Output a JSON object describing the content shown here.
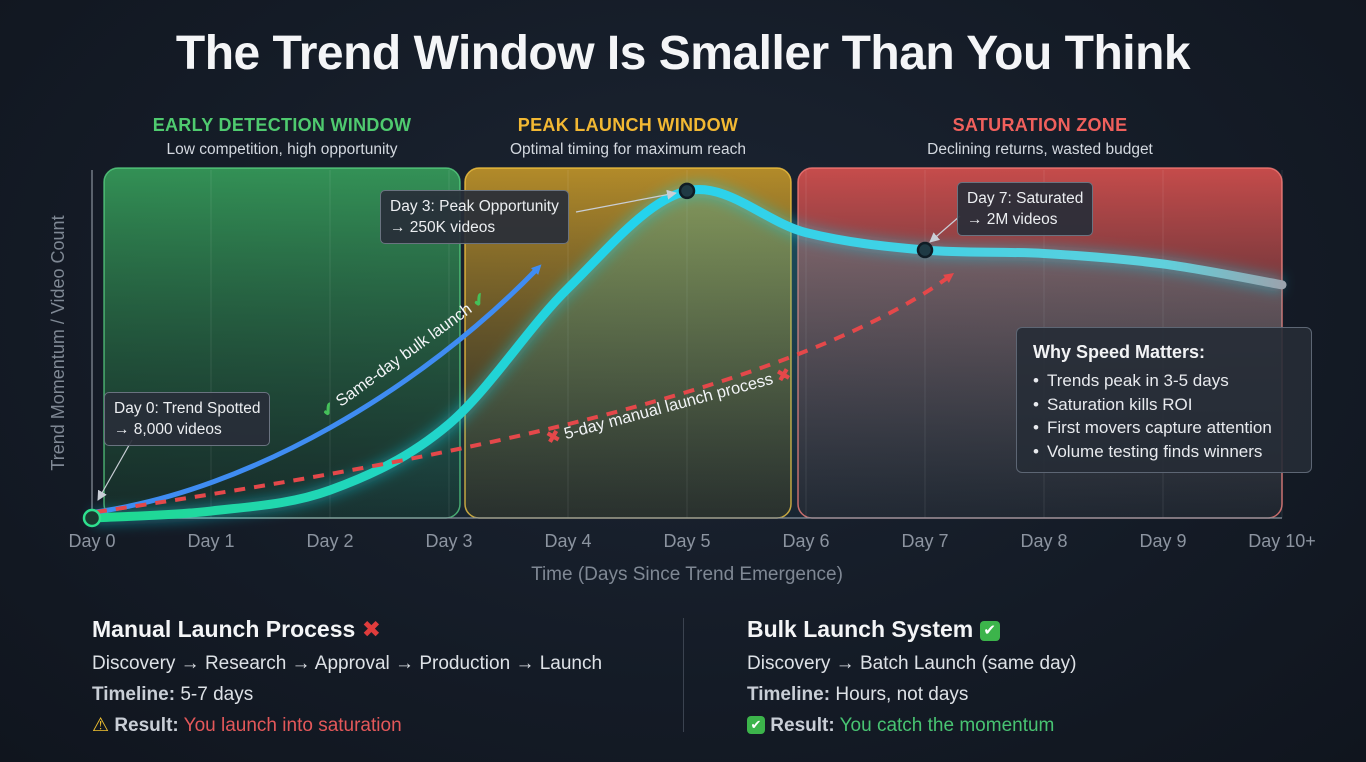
{
  "title": "The Trend Window Is Smaller Than You Think",
  "zones": [
    {
      "title": "EARLY DETECTION WINDOW",
      "subtitle": "Low competition, high opportunity",
      "color": "#4fca6f"
    },
    {
      "title": "PEAK LAUNCH WINDOW",
      "subtitle": "Optimal timing for maximum reach",
      "color": "#f2b833"
    },
    {
      "title": "SATURATION ZONE",
      "subtitle": "Declining returns, wasted budget",
      "color": "#f0605c"
    }
  ],
  "callouts": {
    "day0": [
      "Day 0: Trend Spotted",
      "→ 8,000 videos"
    ],
    "day3": [
      "Day 3: Peak Opportunity",
      "→ 250K videos"
    ],
    "day7": [
      "Day 7: Saturated",
      "→ 2M videos"
    ]
  },
  "arrows": {
    "bulk": "Same-day bulk launch",
    "manual": "5-day manual launch process"
  },
  "why": {
    "title": "Why Speed Matters:",
    "items": [
      "Trends peak in 3-5 days",
      "Saturation kills ROI",
      "First movers capture attention",
      "Volume testing finds winners"
    ]
  },
  "bottom": {
    "manual": {
      "title": "Manual Launch Process",
      "flow": "Discovery → Research → Approval → Production → Launch",
      "timeline_label": "Timeline:",
      "timeline": "5-7 days",
      "result_label": "Result:",
      "result": "You launch into saturation"
    },
    "bulk": {
      "title": "Bulk Launch System",
      "flow": "Discovery → Batch Launch (same day)",
      "timeline_label": "Timeline:",
      "timeline": "Hours, not days",
      "result_label": "Result:",
      "result": "You catch the momentum"
    }
  },
  "chart_data": {
    "type": "line",
    "xlabel": "Time (Days Since Trend Emergence)",
    "ylabel": "Trend Momentum / Video Count",
    "categories": [
      "Day 0",
      "Day 1",
      "Day 2",
      "Day 3",
      "Day 4",
      "Day 5",
      "Day 6",
      "Day 7",
      "Day 8",
      "Day 9",
      "Day 10+"
    ],
    "x": [
      0,
      1,
      2,
      3,
      4,
      5,
      6,
      7,
      8,
      9,
      10
    ],
    "series": [
      {
        "values": [
          0,
          2,
          8,
          27,
          66,
          94,
          82,
          77,
          76,
          73,
          67
        ],
        "color": "#27d8e8"
      }
    ],
    "markers": [
      {
        "x": 0,
        "y": 0
      },
      {
        "x": 5,
        "y": 94
      },
      {
        "x": 7,
        "y": 77
      }
    ],
    "ylim": [
      0,
      100
    ],
    "xlim": [
      0,
      10
    ],
    "grid": true
  }
}
